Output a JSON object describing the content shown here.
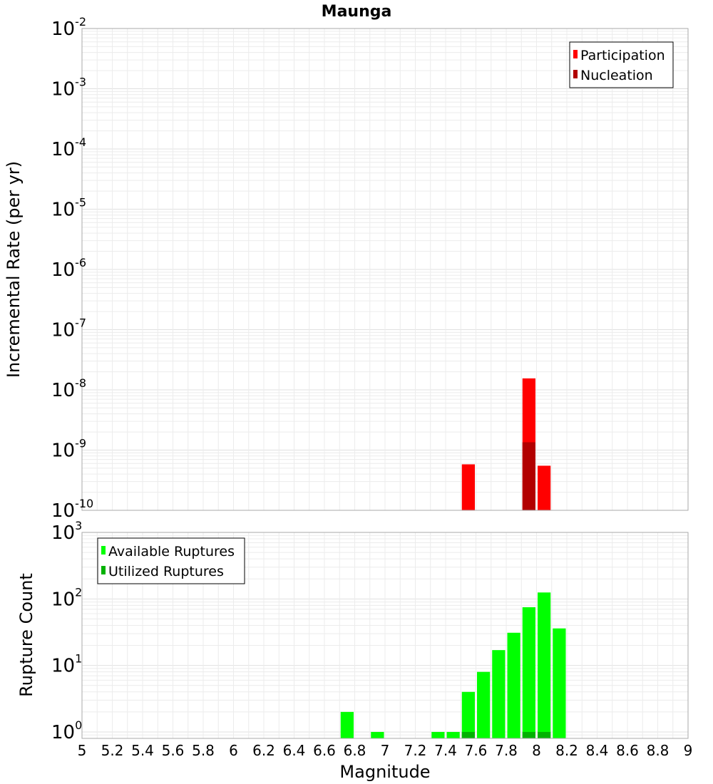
{
  "chart_data": {
    "title": "Maunga",
    "xlabel": "Magnitude",
    "xlim": [
      5,
      9
    ],
    "x_ticks": [
      "5",
      "5.2",
      "5.4",
      "5.6",
      "5.8",
      "6",
      "6.2",
      "6.4",
      "6.6",
      "6.8",
      "7",
      "7.2",
      "7.4",
      "7.6",
      "7.8",
      "8",
      "8.2",
      "8.4",
      "8.6",
      "8.8",
      "9"
    ],
    "bin_width": 0.1,
    "top": {
      "type": "bar",
      "ylabel": "Incremental Rate (per yr)",
      "yscale": "log",
      "ylim": [
        1e-10,
        0.01
      ],
      "y_ticks": [
        {
          "base": "10",
          "exp": "-2"
        },
        {
          "base": "10",
          "exp": "-3"
        },
        {
          "base": "10",
          "exp": "-4"
        },
        {
          "base": "10",
          "exp": "-5"
        },
        {
          "base": "10",
          "exp": "-6"
        },
        {
          "base": "10",
          "exp": "-7"
        },
        {
          "base": "10",
          "exp": "-8"
        },
        {
          "base": "10",
          "exp": "-9"
        },
        {
          "base": "10",
          "exp": "-10"
        }
      ],
      "legend_position": "top-right",
      "series": [
        {
          "name": "Participation",
          "color": "#ff0000",
          "points": [
            {
              "x": 7.55,
              "y": 5.8e-10
            },
            {
              "x": 7.95,
              "y": 1.55e-08
            },
            {
              "x": 8.05,
              "y": 5.5e-10
            }
          ]
        },
        {
          "name": "Nucleation",
          "color": "#b20000",
          "points": [
            {
              "x": 7.95,
              "y": 1.35e-09
            }
          ]
        }
      ]
    },
    "bottom": {
      "type": "bar",
      "ylabel": "Rupture Count",
      "yscale": "log",
      "ylim": [
        0.8,
        1000
      ],
      "y_ticks": [
        {
          "base": "10",
          "exp": "3",
          "value": 1000
        },
        {
          "base": "10",
          "exp": "2",
          "value": 100
        },
        {
          "base": "10",
          "exp": "1",
          "value": 10
        },
        {
          "base": "10",
          "exp": "0",
          "value": 1
        }
      ],
      "legend_position": "top-left",
      "series": [
        {
          "name": "Available Ruptures",
          "color": "#00ff00",
          "points": [
            {
              "x": 6.75,
              "y": 2
            },
            {
              "x": 6.95,
              "y": 1
            },
            {
              "x": 7.35,
              "y": 1
            },
            {
              "x": 7.45,
              "y": 1
            },
            {
              "x": 7.55,
              "y": 4
            },
            {
              "x": 7.65,
              "y": 8
            },
            {
              "x": 7.75,
              "y": 17
            },
            {
              "x": 7.85,
              "y": 31
            },
            {
              "x": 7.95,
              "y": 75
            },
            {
              "x": 8.05,
              "y": 125
            },
            {
              "x": 8.15,
              "y": 36
            }
          ]
        },
        {
          "name": "Utilized Ruptures",
          "color": "#00b200",
          "points": [
            {
              "x": 7.55,
              "y": 1
            },
            {
              "x": 7.95,
              "y": 1
            },
            {
              "x": 8.05,
              "y": 1
            }
          ]
        }
      ]
    }
  }
}
